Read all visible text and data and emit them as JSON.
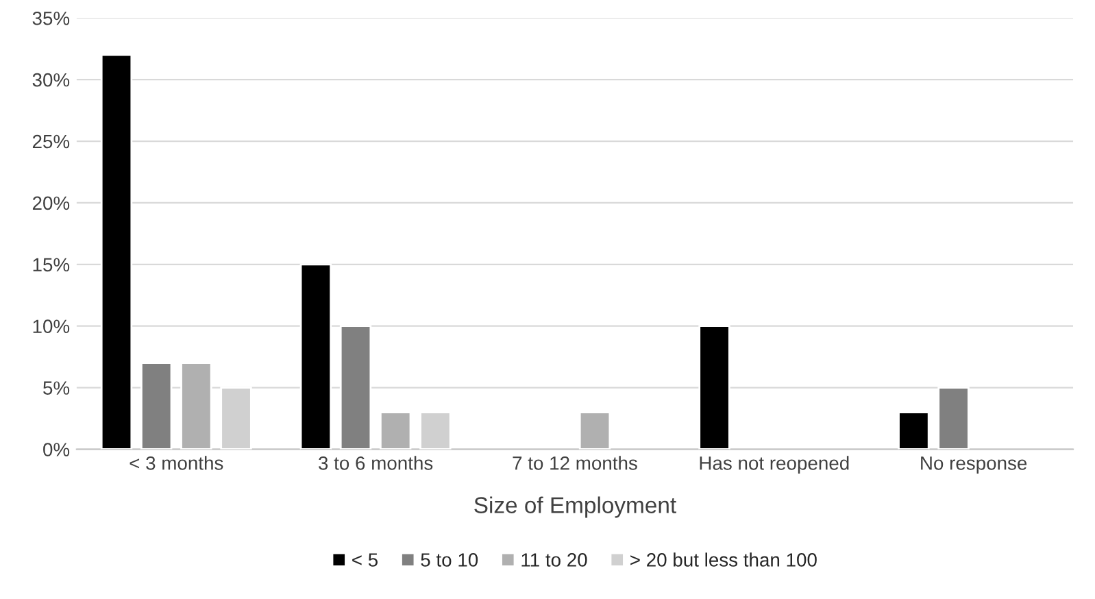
{
  "chart_data": {
    "type": "bar",
    "xlabel": "Size of Employment",
    "categories": [
      "< 3 months",
      "3 to 6 months",
      "7 to 12 months",
      "Has not reopened",
      "No response"
    ],
    "series": [
      {
        "name": "< 5",
        "color": "#000000",
        "values": [
          32,
          15,
          null,
          10,
          3
        ]
      },
      {
        "name": "5 to 10",
        "color": "#808080",
        "values": [
          7,
          10,
          null,
          null,
          5
        ]
      },
      {
        "name": "11 to 20",
        "color": "#b0b0b0",
        "values": [
          7,
          3,
          3,
          null,
          null
        ]
      },
      {
        "name": "> 20 but less than 100",
        "color": "#d0d0d0",
        "values": [
          5,
          3,
          null,
          null,
          null
        ]
      }
    ],
    "ylim": [
      0,
      35
    ],
    "yticks": [
      {
        "value": 0,
        "label": "0%"
      },
      {
        "value": 5,
        "label": "5%"
      },
      {
        "value": 10,
        "label": "10%"
      },
      {
        "value": 15,
        "label": "15%"
      },
      {
        "value": 20,
        "label": "20%"
      },
      {
        "value": 25,
        "label": "25%"
      },
      {
        "value": 30,
        "label": "30%"
      },
      {
        "value": 35,
        "label": "35%"
      }
    ],
    "grid": "y",
    "legend": "bottom"
  }
}
